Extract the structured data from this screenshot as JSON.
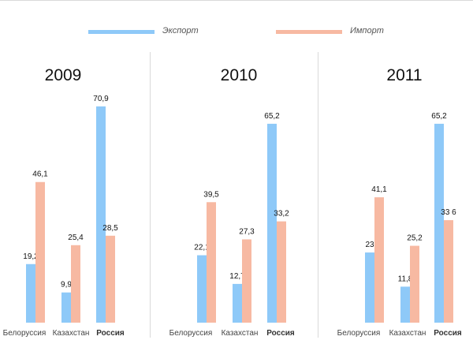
{
  "legend": {
    "export_label": "Экспорт",
    "import_label": "Импорт"
  },
  "colors": {
    "export": "#8ec9f8",
    "import": "#f7b9a2",
    "divider": "#d9d9d9"
  },
  "chart_data": {
    "type": "bar",
    "ylim": [
      0,
      75
    ],
    "grid": false,
    "legend_position": "top",
    "series_names": [
      "Экспорт",
      "Импорт"
    ],
    "panels": [
      {
        "title": "2009",
        "categories": [
          "Белоруссия",
          "Казахстан",
          "Россия"
        ],
        "series": [
          {
            "name": "Экспорт",
            "values": [
              19.2,
              9.9,
              70.9
            ],
            "labels": [
              "19,2",
              "9,9",
              "70,9"
            ]
          },
          {
            "name": "Импорт",
            "values": [
              46.1,
              25.4,
              28.5
            ],
            "labels": [
              "46,1",
              "25,4",
              "28,5"
            ]
          }
        ]
      },
      {
        "title": "2010",
        "categories": [
          "Белоруссия",
          "Казахстан",
          "Россия"
        ],
        "series": [
          {
            "name": "Экспорт",
            "values": [
              22.1,
              12.7,
              65.2
            ],
            "labels": [
              "22,1",
              "12,7",
              "65,2"
            ]
          },
          {
            "name": "Импорт",
            "values": [
              39.5,
              27.3,
              33.2
            ],
            "labels": [
              "39,5",
              "27,3",
              "33,2"
            ]
          }
        ]
      },
      {
        "title": "2011",
        "categories": [
          "Белоруссия",
          "Казахстан",
          "Россия"
        ],
        "series": [
          {
            "name": "Экспорт",
            "values": [
              23,
              11.8,
              65.2
            ],
            "labels": [
              "23",
              "11,8",
              "65,2"
            ]
          },
          {
            "name": "Импорт",
            "values": [
              41.1,
              25.2,
              33.6
            ],
            "labels": [
              "41,1",
              "25,2",
              "33 6"
            ]
          }
        ]
      }
    ]
  }
}
